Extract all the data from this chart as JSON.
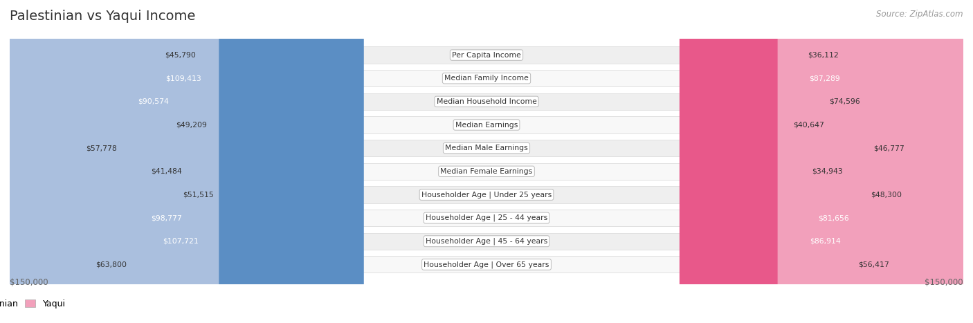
{
  "title": "Palestinian vs Yaqui Income",
  "source": "Source: ZipAtlas.com",
  "categories": [
    "Per Capita Income",
    "Median Family Income",
    "Median Household Income",
    "Median Earnings",
    "Median Male Earnings",
    "Median Female Earnings",
    "Householder Age | Under 25 years",
    "Householder Age | 25 - 44 years",
    "Householder Age | 45 - 64 years",
    "Householder Age | Over 65 years"
  ],
  "palestinian_values": [
    45790,
    109413,
    90574,
    49209,
    57778,
    41484,
    51515,
    98777,
    107721,
    63800
  ],
  "yaqui_values": [
    36112,
    87289,
    74596,
    40647,
    46777,
    34943,
    48300,
    81656,
    86914,
    56417
  ],
  "max_value": 150000,
  "palestinian_color_light": "#aabfde",
  "palestinian_color_dark": "#5b8ec4",
  "yaqui_color_light": "#f2a0bb",
  "yaqui_color_dark": "#e8588a",
  "background_color": "#ffffff",
  "row_bg_odd": "#efefef",
  "row_bg_even": "#f8f8f8",
  "label_bg_color": "#ffffff",
  "title_color": "#333333",
  "source_color": "#999999",
  "legend_labels": [
    "Palestinian",
    "Yaqui"
  ],
  "x_axis_label_left": "$150,000",
  "x_axis_label_right": "$150,000",
  "inside_threshold_pal": 55000,
  "inside_threshold_yaq": 45000
}
